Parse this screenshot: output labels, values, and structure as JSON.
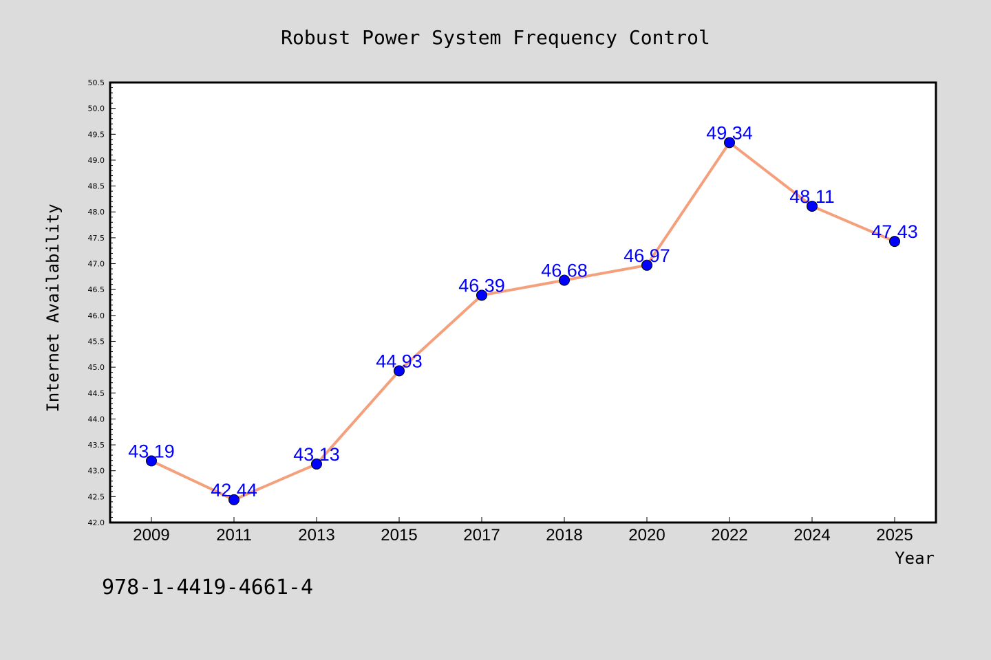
{
  "chart_data": {
    "type": "line",
    "title": "Robust Power System Frequency Control",
    "xlabel": "Year",
    "ylabel": "Internet Availability",
    "categories": [
      "2009",
      "2011",
      "2013",
      "2015",
      "2017",
      "2018",
      "2020",
      "2022",
      "2024",
      "2025"
    ],
    "series": [
      {
        "values": [
          43.19,
          42.44,
          43.13,
          44.93,
          46.39,
          46.68,
          46.97,
          49.34,
          48.11,
          47.43
        ],
        "labels": [
          "43.19",
          "42.44",
          "43.13",
          "44.93",
          "46.39",
          "46.68",
          "46.97",
          "49.34",
          "48.11",
          "47.43"
        ]
      }
    ],
    "ylim": [
      42.0,
      50.5
    ],
    "yticks": [
      "42.0",
      "42.5",
      "43.0",
      "43.5",
      "44.0",
      "44.5",
      "45.0",
      "45.5",
      "46.0",
      "46.5",
      "47.0",
      "47.5",
      "48.0",
      "48.5",
      "49.0",
      "49.5",
      "50.0",
      "50.5"
    ],
    "grid": false,
    "line_color": "#f4a07d",
    "marker_color": "#0000ff",
    "label_color": "#0000ff",
    "plot_background": "#ffffff",
    "figure_background": "#dcdcdc"
  },
  "annotation": {
    "isbn": "978-1-4419-4661-4"
  }
}
